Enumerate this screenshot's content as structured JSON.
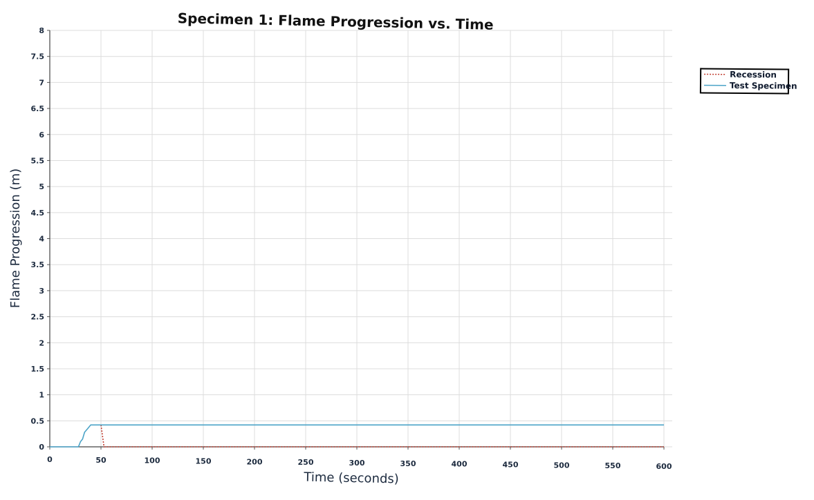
{
  "chart_data": {
    "type": "line",
    "title": "Specimen 1: Flame Progression vs. Time",
    "xlabel": "Time (seconds)",
    "ylabel": "Flame Progression (m)",
    "xlim": [
      0,
      600
    ],
    "ylim": [
      0,
      8
    ],
    "x_ticks": [
      "0",
      "50",
      "100",
      "150",
      "200",
      "250",
      "300",
      "350",
      "400",
      "450",
      "500",
      "550",
      "600"
    ],
    "y_ticks": [
      "0",
      "0.5",
      "1",
      "1.5",
      "2",
      "2.5",
      "3",
      "3.5",
      "4",
      "4.5",
      "5",
      "5.5",
      "6",
      "6.5",
      "7",
      "7.5",
      "8"
    ],
    "grid": true,
    "legend_position": "top-right",
    "series": [
      {
        "name": "Recession",
        "style": "dotted",
        "color": "#c0392b",
        "x": [
          50,
          53,
          600
        ],
        "y": [
          0.42,
          0.0,
          0.0
        ]
      },
      {
        "name": "Test Specimen",
        "style": "solid",
        "color": "#4aa3c7",
        "x": [
          0,
          28,
          30,
          32,
          34,
          37,
          40,
          50,
          100,
          200,
          300,
          400,
          500,
          600
        ],
        "y": [
          0.0,
          0.0,
          0.1,
          0.15,
          0.28,
          0.35,
          0.42,
          0.42,
          0.42,
          0.42,
          0.42,
          0.42,
          0.42,
          0.42
        ]
      }
    ]
  }
}
